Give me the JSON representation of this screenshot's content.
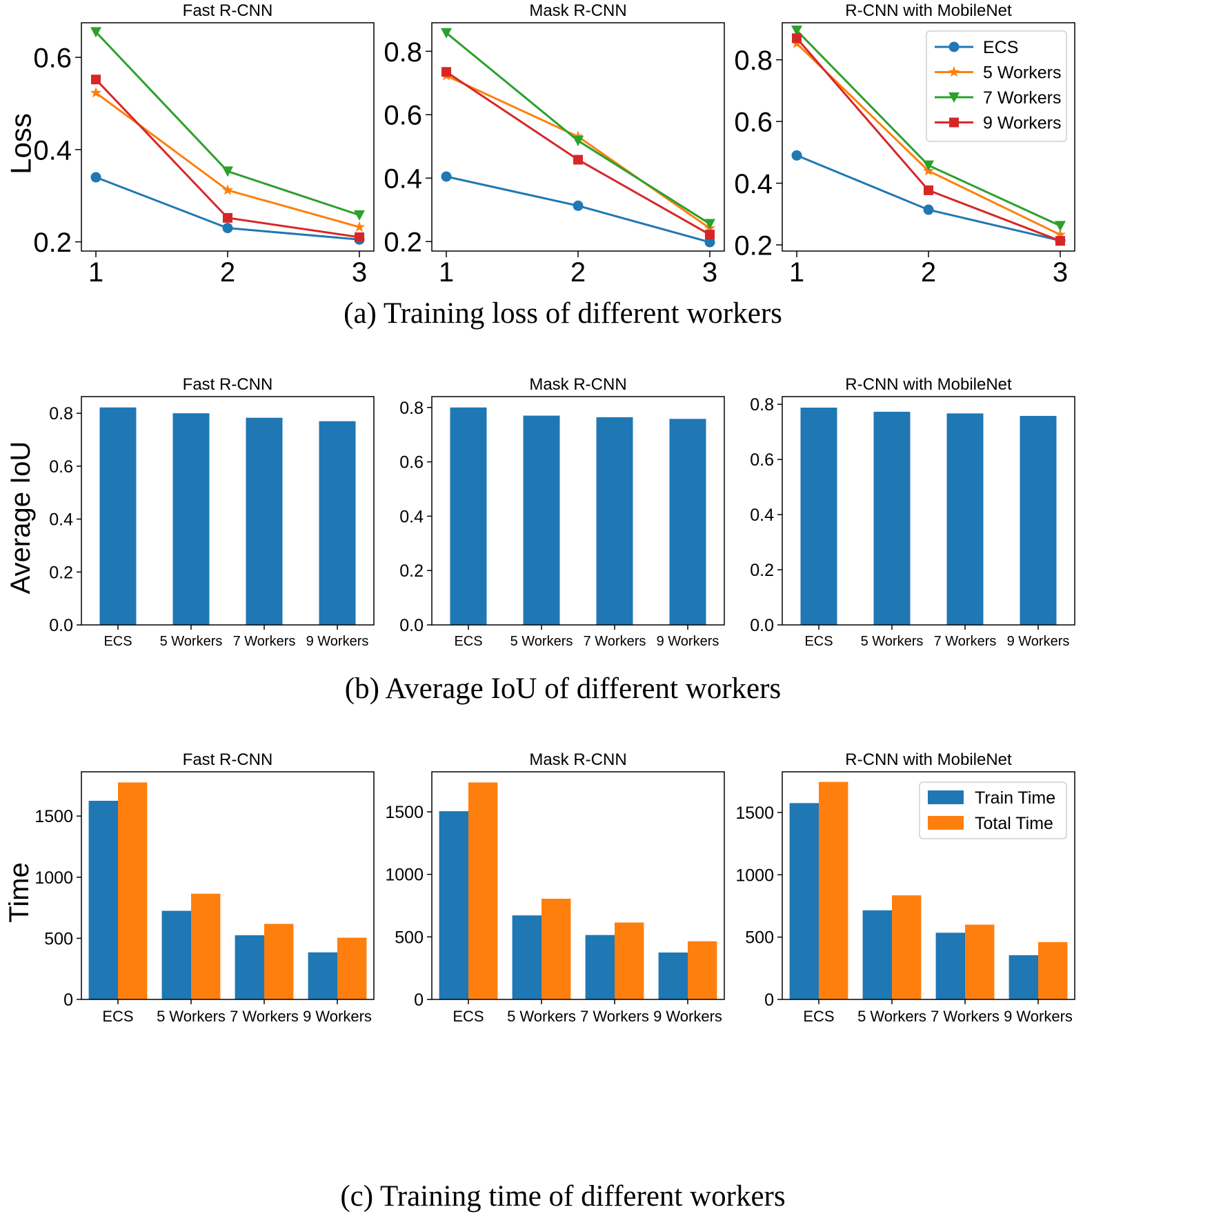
{
  "colors": {
    "ecs": "#1f77b4",
    "w5": "#ff7f0e",
    "w7": "#2ca02c",
    "w9": "#d62728",
    "train": "#1f77b4",
    "total": "#ff7f0e"
  },
  "captions": {
    "a": "(a)  Training loss of different workers",
    "b": "(b)  Average IoU of different workers",
    "c": "(c)  Training time of different workers"
  },
  "chart_data": [
    {
      "type": "line",
      "row": "a",
      "title": "Fast R-CNN",
      "ylabel": "Loss",
      "x": [
        1,
        2,
        3
      ],
      "xticks": [
        "1",
        "2",
        "3"
      ],
      "xlim": [
        0.89,
        3.11
      ],
      "ylim": [
        0.18,
        0.675
      ],
      "yticks": [
        0.2,
        0.4,
        0.6
      ],
      "yticklabels": [
        "0.2",
        "0.4",
        "0.6"
      ],
      "series": [
        {
          "name": "ECS",
          "marker": "circle",
          "color_key": "ecs",
          "values": [
            0.34,
            0.23,
            0.205
          ]
        },
        {
          "name": "5 Workers",
          "marker": "star",
          "color_key": "w5",
          "values": [
            0.523,
            0.312,
            0.232
          ]
        },
        {
          "name": "7 Workers",
          "marker": "triangle-down",
          "color_key": "w7",
          "values": [
            0.655,
            0.353,
            0.258
          ]
        },
        {
          "name": "9 Workers",
          "marker": "square",
          "color_key": "w9",
          "values": [
            0.552,
            0.252,
            0.21
          ]
        }
      ]
    },
    {
      "type": "line",
      "row": "a",
      "title": "Mask R-CNN",
      "ylabel": "",
      "x": [
        1,
        2,
        3
      ],
      "xticks": [
        "1",
        "2",
        "3"
      ],
      "xlim": [
        0.89,
        3.11
      ],
      "ylim": [
        0.17,
        0.89
      ],
      "yticks": [
        0.2,
        0.4,
        0.6,
        0.8
      ],
      "yticklabels": [
        "0.2",
        "0.4",
        "0.6",
        "0.8"
      ],
      "series": [
        {
          "name": "ECS",
          "marker": "circle",
          "color_key": "ecs",
          "values": [
            0.405,
            0.313,
            0.198
          ]
        },
        {
          "name": "5 Workers",
          "marker": "star",
          "color_key": "w5",
          "values": [
            0.723,
            0.531,
            0.242
          ]
        },
        {
          "name": "7 Workers",
          "marker": "triangle-down",
          "color_key": "w7",
          "values": [
            0.858,
            0.518,
            0.256
          ]
        },
        {
          "name": "9 Workers",
          "marker": "square",
          "color_key": "w9",
          "values": [
            0.735,
            0.458,
            0.222
          ]
        }
      ]
    },
    {
      "type": "line",
      "row": "a",
      "title": "R-CNN with MobileNet",
      "ylabel": "",
      "x": [
        1,
        2,
        3
      ],
      "xticks": [
        "1",
        "2",
        "3"
      ],
      "xlim": [
        0.89,
        3.11
      ],
      "ylim": [
        0.18,
        0.92
      ],
      "yticks": [
        0.2,
        0.4,
        0.6,
        0.8
      ],
      "yticklabels": [
        "0.2",
        "0.4",
        "0.6",
        "0.8"
      ],
      "legend": "top-right",
      "series": [
        {
          "name": "ECS",
          "marker": "circle",
          "color_key": "ecs",
          "values": [
            0.49,
            0.314,
            0.214
          ]
        },
        {
          "name": "5 Workers",
          "marker": "star",
          "color_key": "w5",
          "values": [
            0.853,
            0.44,
            0.233
          ]
        },
        {
          "name": "7 Workers",
          "marker": "triangle-down",
          "color_key": "w7",
          "values": [
            0.895,
            0.458,
            0.262
          ]
        },
        {
          "name": "9 Workers",
          "marker": "square",
          "color_key": "w9",
          "values": [
            0.87,
            0.377,
            0.213
          ]
        }
      ]
    },
    {
      "type": "bar",
      "row": "b",
      "title": "Fast R-CNN",
      "ylabel": "Average IoU",
      "categories": [
        "ECS",
        "5 Workers",
        "7 Workers",
        "9 Workers"
      ],
      "values": [
        0.822,
        0.8,
        0.783,
        0.77
      ],
      "ylim": [
        0,
        0.863
      ],
      "yticks": [
        0,
        0.2,
        0.4,
        0.6,
        0.8
      ],
      "yticklabels": [
        "0.0",
        "0.2",
        "0.4",
        "0.6",
        "0.8"
      ]
    },
    {
      "type": "bar",
      "row": "b",
      "title": "Mask R-CNN",
      "ylabel": "",
      "categories": [
        "ECS",
        "5 Workers",
        "7 Workers",
        "9 Workers"
      ],
      "values": [
        0.8,
        0.77,
        0.764,
        0.758
      ],
      "ylim": [
        0,
        0.84
      ],
      "yticks": [
        0,
        0.2,
        0.4,
        0.6,
        0.8
      ],
      "yticklabels": [
        "0.0",
        "0.2",
        "0.4",
        "0.6",
        "0.8"
      ]
    },
    {
      "type": "bar",
      "row": "b",
      "title": "R-CNN with MobileNet",
      "ylabel": "",
      "categories": [
        "ECS",
        "5 Workers",
        "7 Workers",
        "9 Workers"
      ],
      "values": [
        0.788,
        0.773,
        0.767,
        0.758
      ],
      "ylim": [
        0,
        0.828
      ],
      "yticks": [
        0,
        0.2,
        0.4,
        0.6,
        0.8
      ],
      "yticklabels": [
        "0.0",
        "0.2",
        "0.4",
        "0.6",
        "0.8"
      ]
    },
    {
      "type": "bar",
      "row": "c",
      "title": "Fast R-CNN",
      "ylabel": "Time",
      "categories": [
        "ECS",
        "5 Workers",
        "7 Workers",
        "9 Workers"
      ],
      "ylim": [
        0,
        1862
      ],
      "yticks": [
        0,
        500,
        1000,
        1500
      ],
      "yticklabels": [
        "0",
        "500",
        "1000",
        "1500"
      ],
      "series": [
        {
          "name": "Train Time",
          "color_key": "train",
          "values": [
            1625,
            725,
            525,
            385
          ]
        },
        {
          "name": "Total Time",
          "color_key": "total",
          "values": [
            1775,
            865,
            618,
            505
          ]
        }
      ]
    },
    {
      "type": "bar",
      "row": "c",
      "title": "Mask R-CNN",
      "ylabel": "",
      "categories": [
        "ECS",
        "5 Workers",
        "7 Workers",
        "9 Workers"
      ],
      "ylim": [
        0,
        1820
      ],
      "yticks": [
        0,
        500,
        1000,
        1500
      ],
      "yticklabels": [
        "0",
        "500",
        "1000",
        "1500"
      ],
      "series": [
        {
          "name": "Train Time",
          "color_key": "train",
          "values": [
            1505,
            672,
            515,
            375
          ]
        },
        {
          "name": "Total Time",
          "color_key": "total",
          "values": [
            1735,
            805,
            615,
            465
          ]
        }
      ]
    },
    {
      "type": "bar",
      "row": "c",
      "title": "R-CNN with MobileNet",
      "ylabel": "",
      "categories": [
        "ECS",
        "5 Workers",
        "7 Workers",
        "9 Workers"
      ],
      "ylim": [
        0,
        1826
      ],
      "yticks": [
        0,
        500,
        1000,
        1500
      ],
      "yticklabels": [
        "0",
        "500",
        "1000",
        "1500"
      ],
      "legend": "top-right",
      "series": [
        {
          "name": "Train Time",
          "color_key": "train",
          "values": [
            1575,
            715,
            535,
            355
          ]
        },
        {
          "name": "Total Time",
          "color_key": "total",
          "values": [
            1745,
            835,
            600,
            460
          ]
        }
      ]
    }
  ]
}
